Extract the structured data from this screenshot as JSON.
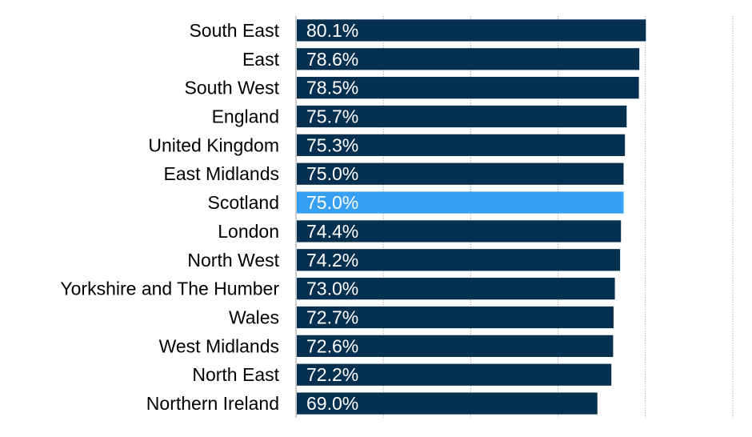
{
  "chart_data": {
    "type": "bar",
    "orientation": "horizontal",
    "categories": [
      "South East",
      "East",
      "South West",
      "England",
      "United Kingdom",
      "East Midlands",
      "Scotland",
      "London",
      "North West",
      "Yorkshire and The Humber",
      "Wales",
      "West Midlands",
      "North East",
      "Northern Ireland"
    ],
    "values": [
      80.1,
      78.6,
      78.5,
      75.7,
      75.3,
      75.0,
      75.0,
      74.4,
      74.2,
      73.0,
      72.7,
      72.6,
      72.2,
      69.0
    ],
    "value_labels": [
      "80.1%",
      "78.6%",
      "78.5%",
      "75.7%",
      "75.3%",
      "75.0%",
      "75.0%",
      "74.4%",
      "74.2%",
      "73.0%",
      "72.7%",
      "72.6%",
      "72.2%",
      "69.0%"
    ],
    "highlight_category": "Scotland",
    "xlim": [
      0,
      100
    ],
    "x_gridlines": [
      20,
      40,
      60,
      80,
      100
    ],
    "grid": true,
    "legend": "none",
    "title": "",
    "xlabel": "",
    "ylabel": ""
  },
  "colors": {
    "bar": "#06304f",
    "highlight": "#35a0f4",
    "gridline": "#b0b0b0",
    "axis": "#9a9a9a"
  }
}
